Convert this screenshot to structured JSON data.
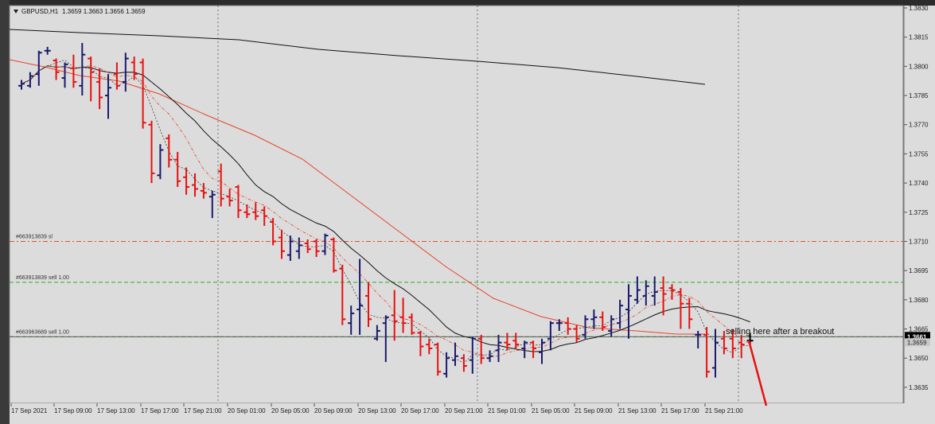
{
  "window": {
    "symbol_title": "GBPUSD,H1",
    "ohlc": "1.3659 1.3663 1.3656 1.3659"
  },
  "chart_data": {
    "type": "ohlc",
    "instrument": "GBPUSD",
    "timeframe": "H1",
    "ylim": [
      1.3628,
      1.383
    ],
    "y_ticks": [
      "1.3830",
      "1.3815",
      "1.3800",
      "1.3785",
      "1.3770",
      "1.3755",
      "1.3740",
      "1.3725",
      "1.3710",
      "1.3695",
      "1.3680",
      "1.3665",
      "1.3650",
      "1.3635"
    ],
    "x_ticks": [
      "17 Sep 2021",
      "17 Sep 09:00",
      "17 Sep 13:00",
      "17 Sep 17:00",
      "17 Sep 21:00",
      "20 Sep 01:00",
      "20 Sep 05:00",
      "20 Sep 09:00",
      "20 Sep 13:00",
      "20 Sep 17:00",
      "20 Sep 21:00",
      "21 Sep 01:00",
      "21 Sep 05:00",
      "21 Sep 09:00",
      "21 Sep 13:00",
      "21 Sep 17:00",
      "21 Sep 21:00"
    ],
    "current_price": "1.3661",
    "bid_price": "1.3659",
    "bars": [
      {
        "o": 1.379,
        "h": 1.3793,
        "l": 1.3788,
        "c": 1.3791
      },
      {
        "o": 1.379,
        "h": 1.3797,
        "l": 1.3789,
        "c": 1.3795
      },
      {
        "o": 1.3796,
        "h": 1.3808,
        "l": 1.379,
        "c": 1.3807
      },
      {
        "o": 1.3808,
        "h": 1.381,
        "l": 1.3806,
        "c": 1.3808
      },
      {
        "o": 1.3803,
        "h": 1.3804,
        "l": 1.3793,
        "c": 1.3797
      },
      {
        "o": 1.3794,
        "h": 1.3802,
        "l": 1.3789,
        "c": 1.3801
      },
      {
        "o": 1.3799,
        "h": 1.3806,
        "l": 1.3789,
        "c": 1.3792
      },
      {
        "o": 1.379,
        "h": 1.3812,
        "l": 1.3785,
        "c": 1.3806
      },
      {
        "o": 1.3804,
        "h": 1.3805,
        "l": 1.3782,
        "c": 1.3797
      },
      {
        "o": 1.3792,
        "h": 1.3799,
        "l": 1.3778,
        "c": 1.3784
      },
      {
        "o": 1.3785,
        "h": 1.3796,
        "l": 1.3773,
        "c": 1.3789
      },
      {
        "o": 1.3796,
        "h": 1.3802,
        "l": 1.3788,
        "c": 1.379
      },
      {
        "o": 1.3792,
        "h": 1.3807,
        "l": 1.3787,
        "c": 1.3804
      },
      {
        "o": 1.3802,
        "h": 1.3805,
        "l": 1.3793,
        "c": 1.3796
      },
      {
        "o": 1.3802,
        "h": 1.3804,
        "l": 1.3768,
        "c": 1.3771
      },
      {
        "o": 1.377,
        "h": 1.3772,
        "l": 1.374,
        "c": 1.3745
      },
      {
        "o": 1.3744,
        "h": 1.376,
        "l": 1.3742,
        "c": 1.3757
      },
      {
        "o": 1.3763,
        "h": 1.3765,
        "l": 1.3748,
        "c": 1.3752
      },
      {
        "o": 1.3752,
        "h": 1.3756,
        "l": 1.3738,
        "c": 1.3741
      },
      {
        "o": 1.3743,
        "h": 1.3748,
        "l": 1.3734,
        "c": 1.3738
      },
      {
        "o": 1.3739,
        "h": 1.3745,
        "l": 1.3733,
        "c": 1.3737
      },
      {
        "o": 1.3736,
        "h": 1.374,
        "l": 1.3732,
        "c": 1.3735
      },
      {
        "o": 1.3733,
        "h": 1.3736,
        "l": 1.3722,
        "c": 1.3734
      },
      {
        "o": 1.3746,
        "h": 1.375,
        "l": 1.3728,
        "c": 1.3732
      },
      {
        "o": 1.3733,
        "h": 1.3737,
        "l": 1.3728,
        "c": 1.3731
      },
      {
        "o": 1.3738,
        "h": 1.3739,
        "l": 1.3722,
        "c": 1.3726
      },
      {
        "o": 1.3725,
        "h": 1.3729,
        "l": 1.3722,
        "c": 1.3724
      },
      {
        "o": 1.3725,
        "h": 1.373,
        "l": 1.3721,
        "c": 1.3723
      },
      {
        "o": 1.3726,
        "h": 1.3728,
        "l": 1.3718,
        "c": 1.3723
      },
      {
        "o": 1.372,
        "h": 1.3722,
        "l": 1.3708,
        "c": 1.371
      },
      {
        "o": 1.3712,
        "h": 1.3716,
        "l": 1.3701,
        "c": 1.3705
      },
      {
        "o": 1.3703,
        "h": 1.3713,
        "l": 1.37,
        "c": 1.371
      },
      {
        "o": 1.3705,
        "h": 1.3712,
        "l": 1.3701,
        "c": 1.3708
      },
      {
        "o": 1.3709,
        "h": 1.3711,
        "l": 1.3704,
        "c": 1.3706
      },
      {
        "o": 1.371,
        "h": 1.3711,
        "l": 1.3702,
        "c": 1.3705
      },
      {
        "o": 1.3705,
        "h": 1.3714,
        "l": 1.3703,
        "c": 1.3713
      },
      {
        "o": 1.3711,
        "h": 1.3712,
        "l": 1.3694,
        "c": 1.3695
      },
      {
        "o": 1.3696,
        "h": 1.3698,
        "l": 1.3667,
        "c": 1.367
      },
      {
        "o": 1.3668,
        "h": 1.3677,
        "l": 1.3662,
        "c": 1.3673
      },
      {
        "o": 1.3675,
        "h": 1.3701,
        "l": 1.3662,
        "c": 1.3677
      },
      {
        "o": 1.3682,
        "h": 1.3689,
        "l": 1.3666,
        "c": 1.367
      },
      {
        "o": 1.366,
        "h": 1.3667,
        "l": 1.3659,
        "c": 1.3664
      },
      {
        "o": 1.3668,
        "h": 1.3672,
        "l": 1.3648,
        "c": 1.3671
      },
      {
        "o": 1.3672,
        "h": 1.3685,
        "l": 1.3659,
        "c": 1.3669
      },
      {
        "o": 1.3671,
        "h": 1.3681,
        "l": 1.3663,
        "c": 1.3668
      },
      {
        "o": 1.3671,
        "h": 1.3673,
        "l": 1.3662,
        "c": 1.3663
      },
      {
        "o": 1.3663,
        "h": 1.3664,
        "l": 1.3651,
        "c": 1.3656
      },
      {
        "o": 1.3657,
        "h": 1.366,
        "l": 1.3652,
        "c": 1.3655
      },
      {
        "o": 1.3657,
        "h": 1.3658,
        "l": 1.3641,
        "c": 1.3643
      },
      {
        "o": 1.3642,
        "h": 1.3653,
        "l": 1.364,
        "c": 1.365
      },
      {
        "o": 1.3649,
        "h": 1.3658,
        "l": 1.3646,
        "c": 1.3651
      },
      {
        "o": 1.365,
        "h": 1.3652,
        "l": 1.3643,
        "c": 1.3646
      },
      {
        "o": 1.3649,
        "h": 1.3661,
        "l": 1.3642,
        "c": 1.366
      },
      {
        "o": 1.366,
        "h": 1.3662,
        "l": 1.3647,
        "c": 1.365
      },
      {
        "o": 1.365,
        "h": 1.3654,
        "l": 1.3648,
        "c": 1.3651
      },
      {
        "o": 1.3654,
        "h": 1.3662,
        "l": 1.3648,
        "c": 1.3658
      },
      {
        "o": 1.3658,
        "h": 1.3663,
        "l": 1.3654,
        "c": 1.3657
      },
      {
        "o": 1.3659,
        "h": 1.3663,
        "l": 1.3655,
        "c": 1.3657
      },
      {
        "o": 1.3655,
        "h": 1.3659,
        "l": 1.365,
        "c": 1.3658
      },
      {
        "o": 1.3658,
        "h": 1.3659,
        "l": 1.365,
        "c": 1.3655
      },
      {
        "o": 1.3653,
        "h": 1.366,
        "l": 1.3647,
        "c": 1.3658
      },
      {
        "o": 1.366,
        "h": 1.3669,
        "l": 1.3654,
        "c": 1.3668
      },
      {
        "o": 1.3668,
        "h": 1.367,
        "l": 1.3664,
        "c": 1.3668
      },
      {
        "o": 1.3668,
        "h": 1.3671,
        "l": 1.3662,
        "c": 1.3665
      },
      {
        "o": 1.3665,
        "h": 1.3667,
        "l": 1.3658,
        "c": 1.366
      },
      {
        "o": 1.3662,
        "h": 1.3672,
        "l": 1.366,
        "c": 1.367
      },
      {
        "o": 1.367,
        "h": 1.3675,
        "l": 1.3665,
        "c": 1.3671
      },
      {
        "o": 1.3671,
        "h": 1.3674,
        "l": 1.3664,
        "c": 1.3666
      },
      {
        "o": 1.3664,
        "h": 1.3672,
        "l": 1.3661,
        "c": 1.367
      },
      {
        "o": 1.3668,
        "h": 1.368,
        "l": 1.3665,
        "c": 1.3677
      },
      {
        "o": 1.3675,
        "h": 1.3688,
        "l": 1.366,
        "c": 1.3682
      },
      {
        "o": 1.368,
        "h": 1.3692,
        "l": 1.3678,
        "c": 1.3685
      },
      {
        "o": 1.3682,
        "h": 1.369,
        "l": 1.3677,
        "c": 1.3687
      },
      {
        "o": 1.3682,
        "h": 1.3692,
        "l": 1.3677,
        "c": 1.3684
      },
      {
        "o": 1.3686,
        "h": 1.3692,
        "l": 1.3672,
        "c": 1.3683
      },
      {
        "o": 1.3686,
        "h": 1.3688,
        "l": 1.368,
        "c": 1.3685
      },
      {
        "o": 1.3684,
        "h": 1.3686,
        "l": 1.3665,
        "c": 1.3678
      },
      {
        "o": 1.3678,
        "h": 1.3681,
        "l": 1.3665,
        "c": 1.367
      },
      {
        "o": 1.3662,
        "h": 1.3664,
        "l": 1.3655,
        "c": 1.3662
      },
      {
        "o": 1.3662,
        "h": 1.3666,
        "l": 1.364,
        "c": 1.3643
      },
      {
        "o": 1.3645,
        "h": 1.3665,
        "l": 1.364,
        "c": 1.3658
      },
      {
        "o": 1.366,
        "h": 1.3664,
        "l": 1.3652,
        "c": 1.3655
      },
      {
        "o": 1.366,
        "h": 1.3665,
        "l": 1.365,
        "c": 1.3655
      },
      {
        "o": 1.3658,
        "h": 1.3662,
        "l": 1.365,
        "c": 1.3657
      },
      {
        "o": 1.3659,
        "h": 1.3663,
        "l": 1.3656,
        "c": 1.3659
      }
    ],
    "horizontal_levels": [
      {
        "label": "#663913839 sl",
        "price": 1.371,
        "color": "#e0502a",
        "style": "dash-dot"
      },
      {
        "label": "#663913839 sell 1.00",
        "price": 1.3689,
        "color": "#2ea82e",
        "style": "dash"
      },
      {
        "label": "#663963689 sell 1.00",
        "price": 1.3661,
        "color": "#2ea82e",
        "style": "dash"
      }
    ],
    "annotation": {
      "text": "selling here after a breakout",
      "arrow_color": "#e81010"
    },
    "colors": {
      "background": "#dcdcdc",
      "bull_bar": "#1a1a6e",
      "bear_bar": "#e81010",
      "last_bar": "#000000",
      "ma_black": "#111111",
      "ma_red": "#e8442a",
      "grid": "#555555"
    }
  }
}
